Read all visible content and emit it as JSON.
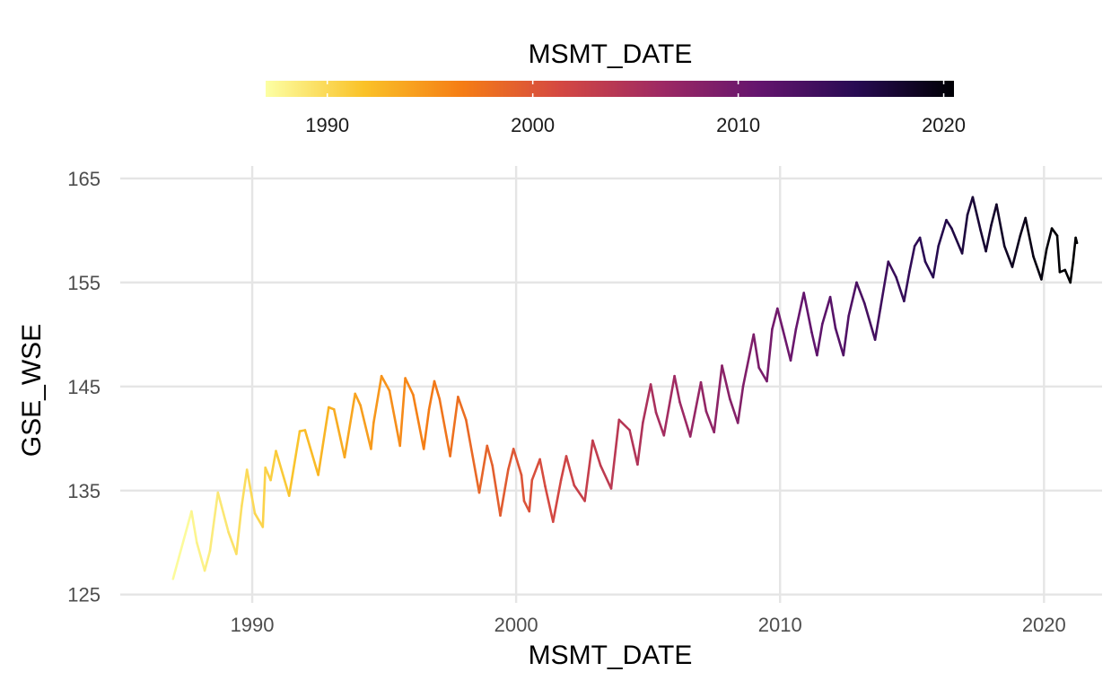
{
  "chart_data": {
    "type": "line",
    "title": "",
    "xlabel": "MSMT_DATE",
    "ylabel": "GSE_WSE",
    "xlim": [
      1985.0,
      2022.2
    ],
    "ylim": [
      124.2,
      166.2
    ],
    "x_ticks": [
      1990,
      2000,
      2010,
      2020
    ],
    "y_ticks": [
      125,
      135,
      145,
      155,
      165
    ],
    "grid": true,
    "legend": {
      "title": "MSMT_DATE",
      "placement": "top",
      "type": "colorbar",
      "range": [
        1987.0,
        2020.5
      ],
      "ticks": [
        1990,
        2000,
        2010,
        2020
      ],
      "colormap": [
        "#fcffa4",
        "#fac228",
        "#f57d15",
        "#d44842",
        "#9f2a63",
        "#65156e",
        "#280b53",
        "#000004"
      ]
    },
    "series": [
      {
        "color_by": "x",
        "points": [
          [
            1987.0,
            126.5
          ],
          [
            1987.7,
            133.0
          ],
          [
            1987.9,
            130.0
          ],
          [
            1988.2,
            127.3
          ],
          [
            1988.4,
            129.2
          ],
          [
            1988.7,
            134.8
          ],
          [
            1989.1,
            131.0
          ],
          [
            1989.4,
            128.9
          ],
          [
            1989.6,
            133.5
          ],
          [
            1989.8,
            137.0
          ],
          [
            1990.1,
            132.8
          ],
          [
            1990.4,
            131.5
          ],
          [
            1990.5,
            137.2
          ],
          [
            1990.7,
            136.0
          ],
          [
            1990.9,
            138.8
          ],
          [
            1991.4,
            134.5
          ],
          [
            1991.8,
            140.7
          ],
          [
            1992.0,
            140.8
          ],
          [
            1992.5,
            136.5
          ],
          [
            1992.9,
            143.0
          ],
          [
            1993.1,
            142.8
          ],
          [
            1993.5,
            138.2
          ],
          [
            1993.9,
            144.3
          ],
          [
            1994.1,
            143.2
          ],
          [
            1994.5,
            139.0
          ],
          [
            1994.6,
            141.5
          ],
          [
            1994.9,
            146.0
          ],
          [
            1995.2,
            144.6
          ],
          [
            1995.6,
            139.3
          ],
          [
            1995.8,
            145.8
          ],
          [
            1996.1,
            144.2
          ],
          [
            1996.5,
            139.0
          ],
          [
            1996.7,
            142.8
          ],
          [
            1996.9,
            145.5
          ],
          [
            1997.1,
            143.8
          ],
          [
            1997.5,
            138.3
          ],
          [
            1997.8,
            144.0
          ],
          [
            1998.1,
            141.8
          ],
          [
            1998.6,
            134.8
          ],
          [
            1998.9,
            139.3
          ],
          [
            1999.1,
            137.4
          ],
          [
            1999.4,
            132.6
          ],
          [
            1999.7,
            137.0
          ],
          [
            1999.9,
            139.0
          ],
          [
            2000.2,
            136.5
          ],
          [
            2000.3,
            134.0
          ],
          [
            2000.5,
            133.0
          ],
          [
            2000.6,
            136.0
          ],
          [
            2000.9,
            138.0
          ],
          [
            2001.1,
            135.4
          ],
          [
            2001.4,
            132.0
          ],
          [
            2001.7,
            136.0
          ],
          [
            2001.9,
            138.3
          ],
          [
            2002.2,
            135.5
          ],
          [
            2002.6,
            134.0
          ],
          [
            2002.9,
            139.8
          ],
          [
            2003.2,
            137.4
          ],
          [
            2003.6,
            135.2
          ],
          [
            2003.9,
            141.8
          ],
          [
            2004.3,
            140.8
          ],
          [
            2004.6,
            137.5
          ],
          [
            2004.8,
            141.5
          ],
          [
            2005.1,
            145.2
          ],
          [
            2005.3,
            142.5
          ],
          [
            2005.6,
            140.3
          ],
          [
            2006.0,
            146.0
          ],
          [
            2006.2,
            143.5
          ],
          [
            2006.6,
            140.2
          ],
          [
            2007.0,
            145.4
          ],
          [
            2007.2,
            142.6
          ],
          [
            2007.5,
            140.6
          ],
          [
            2007.8,
            147.0
          ],
          [
            2008.1,
            143.8
          ],
          [
            2008.4,
            141.5
          ],
          [
            2008.6,
            145.0
          ],
          [
            2009.0,
            150.0
          ],
          [
            2009.2,
            146.8
          ],
          [
            2009.5,
            145.5
          ],
          [
            2009.7,
            150.5
          ],
          [
            2009.9,
            152.5
          ],
          [
            2010.1,
            150.5
          ],
          [
            2010.4,
            147.5
          ],
          [
            2010.6,
            150.5
          ],
          [
            2010.9,
            154.0
          ],
          [
            2011.2,
            150.2
          ],
          [
            2011.4,
            148.0
          ],
          [
            2011.6,
            151.0
          ],
          [
            2011.9,
            153.6
          ],
          [
            2012.1,
            150.6
          ],
          [
            2012.4,
            148.0
          ],
          [
            2012.6,
            151.8
          ],
          [
            2012.9,
            155.0
          ],
          [
            2013.2,
            153.0
          ],
          [
            2013.6,
            149.5
          ],
          [
            2013.8,
            152.5
          ],
          [
            2014.1,
            157.0
          ],
          [
            2014.4,
            155.5
          ],
          [
            2014.7,
            153.2
          ],
          [
            2014.9,
            156.0
          ],
          [
            2015.1,
            158.5
          ],
          [
            2015.3,
            159.3
          ],
          [
            2015.5,
            157.0
          ],
          [
            2015.8,
            155.5
          ],
          [
            2016.0,
            158.5
          ],
          [
            2016.3,
            161.0
          ],
          [
            2016.5,
            160.2
          ],
          [
            2016.9,
            157.8
          ],
          [
            2017.1,
            161.5
          ],
          [
            2017.3,
            163.2
          ],
          [
            2017.6,
            160.0
          ],
          [
            2017.8,
            158.0
          ],
          [
            2018.0,
            160.5
          ],
          [
            2018.2,
            162.5
          ],
          [
            2018.5,
            158.5
          ],
          [
            2018.8,
            156.5
          ],
          [
            2019.1,
            159.5
          ],
          [
            2019.3,
            161.2
          ],
          [
            2019.6,
            157.5
          ],
          [
            2019.9,
            155.3
          ],
          [
            2020.1,
            158.2
          ],
          [
            2020.3,
            160.2
          ],
          [
            2020.5,
            159.5
          ],
          [
            2020.6,
            156.0
          ],
          [
            2020.8,
            156.2
          ],
          [
            2021.0,
            155.0
          ],
          [
            2021.1,
            157.0
          ],
          [
            2021.2,
            159.3
          ],
          [
            2021.25,
            158.8
          ]
        ]
      }
    ]
  }
}
